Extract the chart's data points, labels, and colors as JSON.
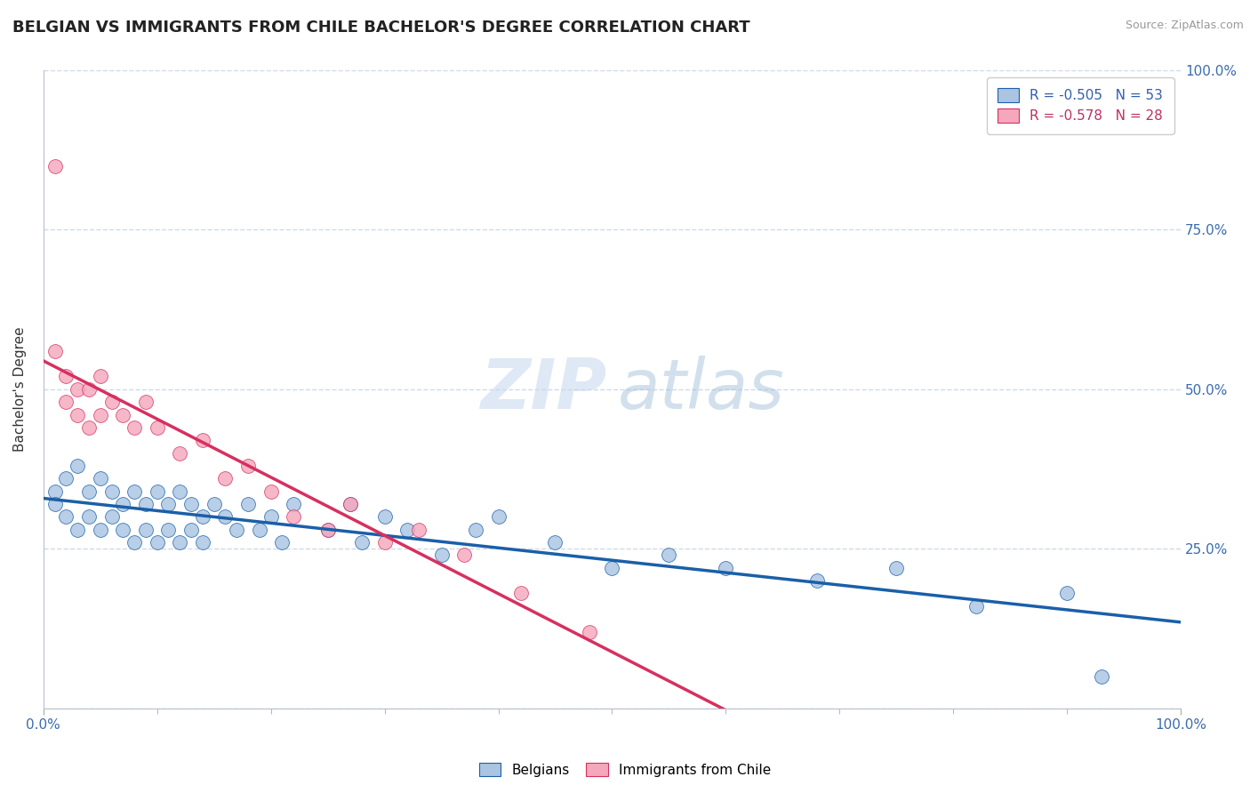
{
  "title": "BELGIAN VS IMMIGRANTS FROM CHILE BACHELOR'S DEGREE CORRELATION CHART",
  "source": "Source: ZipAtlas.com",
  "ylabel": "Bachelor's Degree",
  "legend_bottom": [
    "Belgians",
    "Immigrants from Chile"
  ],
  "blue_color": "#aac4e2",
  "pink_color": "#f5a8bc",
  "blue_line_color": "#1a5fa8",
  "pink_line_color": "#d63060",
  "blue_scatter_x": [
    1,
    1,
    2,
    2,
    3,
    3,
    4,
    4,
    5,
    5,
    6,
    6,
    7,
    7,
    8,
    8,
    9,
    9,
    10,
    10,
    11,
    11,
    12,
    12,
    13,
    13,
    14,
    14,
    15,
    16,
    17,
    18,
    19,
    20,
    21,
    22,
    25,
    27,
    28,
    30,
    32,
    35,
    38,
    40,
    45,
    50,
    55,
    60,
    68,
    75,
    82,
    90,
    93
  ],
  "blue_scatter_y": [
    34,
    32,
    36,
    30,
    38,
    28,
    34,
    30,
    36,
    28,
    34,
    30,
    32,
    28,
    34,
    26,
    32,
    28,
    34,
    26,
    32,
    28,
    34,
    26,
    32,
    28,
    30,
    26,
    32,
    30,
    28,
    32,
    28,
    30,
    26,
    32,
    28,
    32,
    26,
    30,
    28,
    24,
    28,
    30,
    26,
    22,
    24,
    22,
    20,
    22,
    16,
    18,
    5
  ],
  "pink_scatter_x": [
    1,
    1,
    2,
    2,
    3,
    3,
    4,
    4,
    5,
    5,
    6,
    7,
    8,
    9,
    10,
    12,
    14,
    16,
    18,
    20,
    22,
    25,
    27,
    30,
    33,
    37,
    42,
    48
  ],
  "pink_scatter_y": [
    85,
    56,
    52,
    48,
    50,
    46,
    50,
    44,
    52,
    46,
    48,
    46,
    44,
    48,
    44,
    40,
    42,
    36,
    38,
    34,
    30,
    28,
    32,
    26,
    28,
    24,
    18,
    12
  ],
  "xlim": [
    0,
    100
  ],
  "ylim": [
    0,
    100
  ],
  "yticks": [
    0,
    25,
    50,
    75,
    100
  ],
  "yticklabels": [
    "",
    "25.0%",
    "50.0%",
    "75.0%",
    "100.0%"
  ],
  "xtick_labels": [
    "0.0%",
    "100.0%"
  ],
  "background_color": "#ffffff",
  "grid_color": "#d0daea",
  "blue_legend_r": "R = -0.505",
  "blue_legend_n": "N = 53",
  "pink_legend_r": "R = -0.578",
  "pink_legend_n": "N = 28",
  "title_fontsize": 13,
  "axis_label_fontsize": 11,
  "tick_fontsize": 11,
  "source_fontsize": 9
}
